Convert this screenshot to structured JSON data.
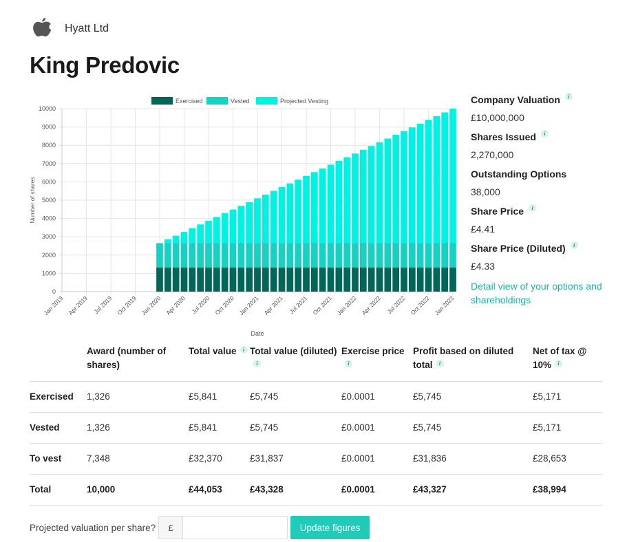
{
  "company": {
    "name": "Hyatt Ltd",
    "logo_icon": "apple-logo-icon"
  },
  "page_title": "King Predovic",
  "colors": {
    "exercised": "#006658",
    "vested": "#16d2c2",
    "projected": "#00f2e3",
    "accent": "#19b6a6",
    "button": "#22cbb8"
  },
  "chart_data": {
    "type": "bar",
    "stacked": true,
    "xlabel": "Date",
    "ylabel": "Number of shares",
    "ylim": [
      0,
      10000
    ],
    "yticks": [
      0,
      1000,
      2000,
      3000,
      4000,
      5000,
      6000,
      7000,
      8000,
      9000,
      10000
    ],
    "xtick_labels": [
      "Jan 2019",
      "Apr 2019",
      "Jul 2019",
      "Oct 2019",
      "Jan 2020",
      "Apr 2020",
      "Jul 2020",
      "Oct 2020",
      "Jan 2021",
      "Apr 2021",
      "Jul 2021",
      "Oct 2021",
      "Jan 2022",
      "Apr 2022",
      "Jul 2022",
      "Oct 2022",
      "Jan 2023"
    ],
    "first_bar": "Jan 2020",
    "legend": [
      "Exercised",
      "Vested",
      "Projected Vesting"
    ],
    "legend_position": "top",
    "series": [
      {
        "name": "Exercised",
        "values": [
          1326,
          1326,
          1326,
          1326,
          1326,
          1326,
          1326,
          1326,
          1326,
          1326,
          1326,
          1326,
          1326,
          1326,
          1326,
          1326,
          1326,
          1326,
          1326,
          1326,
          1326,
          1326,
          1326,
          1326,
          1326,
          1326,
          1326,
          1326,
          1326,
          1326,
          1326,
          1326,
          1326,
          1326,
          1326,
          1326,
          1326
        ]
      },
      {
        "name": "Vested",
        "values": [
          1326,
          1326,
          1326,
          1326,
          1326,
          1326,
          1326,
          1326,
          1326,
          1326,
          1326,
          1326,
          1326,
          1326,
          1326,
          1326,
          1326,
          1326,
          1326,
          1326,
          1326,
          1326,
          1326,
          1326,
          1326,
          1326,
          1326,
          1326,
          1326,
          1326,
          1326,
          1326,
          1326,
          1326,
          1326,
          1326,
          1326
        ]
      },
      {
        "name": "Projected Vesting",
        "values": [
          0,
          204,
          408,
          612,
          816,
          1021,
          1225,
          1429,
          1633,
          1837,
          2041,
          2245,
          2449,
          2653,
          2857,
          3062,
          3266,
          3470,
          3674,
          3878,
          4082,
          4286,
          4490,
          4694,
          4898,
          5103,
          5307,
          5511,
          5715,
          5919,
          6123,
          6327,
          6531,
          6735,
          6939,
          7144,
          7348
        ]
      }
    ]
  },
  "stats": [
    {
      "label": "Company Valuation",
      "value": "£10,000,000",
      "info": true
    },
    {
      "label": "Shares Issued",
      "value": "2,270,000",
      "info": true
    },
    {
      "label": "Outstanding Options",
      "value": "38,000",
      "info": false
    },
    {
      "label": "Share Price",
      "value": "£4.41",
      "info": true
    },
    {
      "label": "Share Price (Diluted)",
      "value": "£4.33",
      "info": true
    }
  ],
  "detail_link": "Detail view of your options and shareholdings",
  "info_glyph": "i",
  "table": {
    "headers": [
      {
        "label": "",
        "info": false
      },
      {
        "label": "Award (number of shares)",
        "info": false
      },
      {
        "label": "Total value",
        "info": true
      },
      {
        "label": "Total value (diluted)",
        "info": true
      },
      {
        "label": "Exercise price",
        "info": true
      },
      {
        "label": "Profit based on diluted total",
        "info": true
      },
      {
        "label": "Net of tax @ 10%",
        "info": true
      }
    ],
    "rows": [
      [
        "Exercised",
        "1,326",
        "£5,841",
        "£5,745",
        "£0.0001",
        "£5,745",
        "£5,171"
      ],
      [
        "Vested",
        "1,326",
        "£5,841",
        "£5,745",
        "£0.0001",
        "£5,745",
        "£5,171"
      ],
      [
        "To vest",
        "7,348",
        "£32,370",
        "£31,837",
        "£0.0001",
        "£31,836",
        "£28,653"
      ],
      [
        "Total",
        "10,000",
        "£44,053",
        "£43,328",
        "£0.0001",
        "£43,327",
        "£38,994"
      ]
    ]
  },
  "projection": {
    "label": "Projected valuation per share?",
    "currency": "£",
    "value": "",
    "placeholder": "",
    "button": "Update figures"
  }
}
